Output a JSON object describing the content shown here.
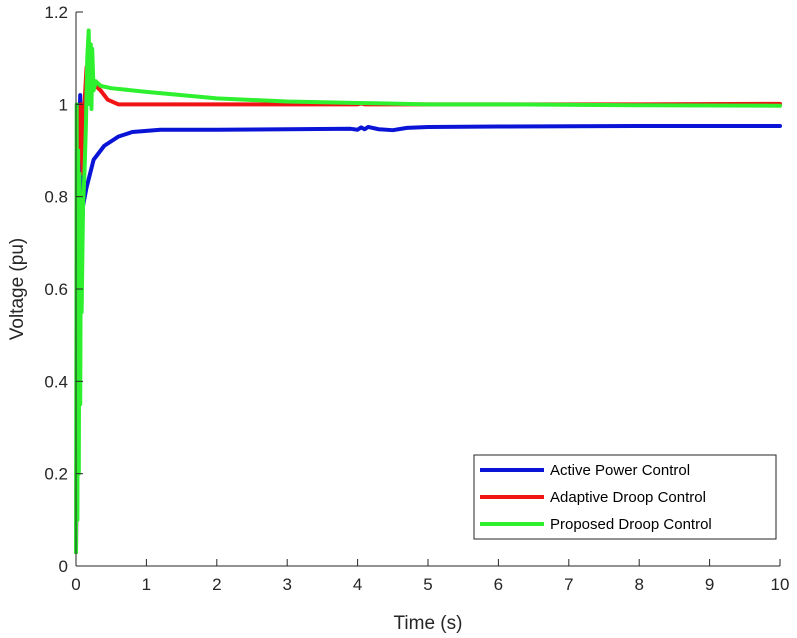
{
  "chart_data": {
    "type": "line",
    "xlabel": "Time (s)",
    "ylabel": "Voltage (pu)",
    "xlim": [
      0,
      10
    ],
    "ylim": [
      0,
      1.2
    ],
    "x_ticks": [
      "0",
      "1",
      "2",
      "3",
      "4",
      "5",
      "6",
      "7",
      "8",
      "9",
      "10"
    ],
    "y_ticks": [
      "0",
      "0.2",
      "0.4",
      "0.6",
      "0.8",
      "1",
      "1.2"
    ],
    "grid": false,
    "legend_position": "bottom-right",
    "series": [
      {
        "name": "Active Power Control",
        "color": "#0a14d6",
        "points": [
          [
            0,
            0.03
          ],
          [
            0.02,
            0.55
          ],
          [
            0.04,
            0.9
          ],
          [
            0.06,
            1.02
          ],
          [
            0.08,
            0.7
          ],
          [
            0.1,
            0.78
          ],
          [
            0.15,
            0.82
          ],
          [
            0.25,
            0.88
          ],
          [
            0.4,
            0.91
          ],
          [
            0.6,
            0.93
          ],
          [
            0.8,
            0.94
          ],
          [
            1.2,
            0.945
          ],
          [
            2,
            0.945
          ],
          [
            3,
            0.946
          ],
          [
            3.9,
            0.947
          ],
          [
            4.0,
            0.945
          ],
          [
            4.05,
            0.95
          ],
          [
            4.1,
            0.946
          ],
          [
            4.15,
            0.951
          ],
          [
            4.3,
            0.946
          ],
          [
            4.5,
            0.944
          ],
          [
            4.7,
            0.949
          ],
          [
            5.0,
            0.951
          ],
          [
            6,
            0.952
          ],
          [
            8,
            0.953
          ],
          [
            10,
            0.953
          ]
        ]
      },
      {
        "name": "Adaptive Droop Control",
        "color": "#f01414",
        "points": [
          [
            0,
            0.03
          ],
          [
            0.02,
            0.6
          ],
          [
            0.04,
            0.95
          ],
          [
            0.07,
            1.0
          ],
          [
            0.1,
            0.85
          ],
          [
            0.12,
            1.0
          ],
          [
            0.15,
            1.08
          ],
          [
            0.18,
            1.03
          ],
          [
            0.22,
            1.05
          ],
          [
            0.28,
            1.04
          ],
          [
            0.35,
            1.03
          ],
          [
            0.45,
            1.01
          ],
          [
            0.6,
            1.0
          ],
          [
            1,
            1.0
          ],
          [
            3,
            1.0
          ],
          [
            4,
            1.0
          ],
          [
            4.05,
            1.002
          ],
          [
            4.1,
            1.0
          ],
          [
            6,
            1.0
          ],
          [
            8,
            1.0
          ],
          [
            10,
            1.001
          ]
        ]
      },
      {
        "name": "Proposed Droop Control",
        "color": "#2ef02e",
        "points": [
          [
            0,
            0.03
          ],
          [
            0.01,
            1.0
          ],
          [
            0.02,
            0.1
          ],
          [
            0.03,
            0.9
          ],
          [
            0.04,
            0.2
          ],
          [
            0.05,
            0.85
          ],
          [
            0.06,
            0.35
          ],
          [
            0.07,
            0.8
          ],
          [
            0.08,
            0.55
          ],
          [
            0.1,
            0.78
          ],
          [
            0.12,
            0.85
          ],
          [
            0.14,
            0.95
          ],
          [
            0.16,
            1.1
          ],
          [
            0.18,
            1.16
          ],
          [
            0.2,
            1.0
          ],
          [
            0.21,
            1.13
          ],
          [
            0.22,
            0.99
          ],
          [
            0.23,
            1.12
          ],
          [
            0.25,
            1.03
          ],
          [
            0.28,
            1.05
          ],
          [
            0.35,
            1.04
          ],
          [
            0.5,
            1.035
          ],
          [
            1,
            1.027
          ],
          [
            2,
            1.013
          ],
          [
            3,
            1.006
          ],
          [
            4,
            1.003
          ],
          [
            5,
            1.0
          ],
          [
            6,
            1.0
          ],
          [
            8,
            0.998
          ],
          [
            10,
            0.997
          ]
        ]
      }
    ]
  }
}
